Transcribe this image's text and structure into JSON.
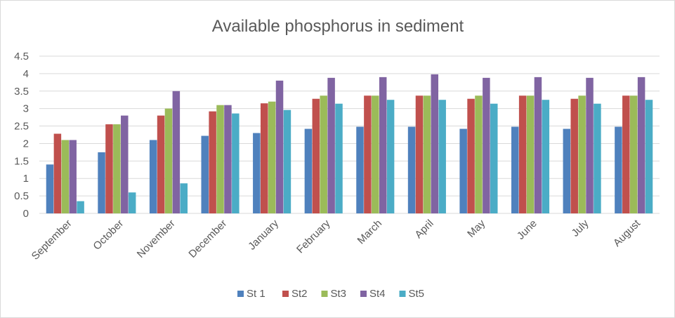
{
  "chart_data": {
    "type": "bar",
    "title": "Available phosphorus in sediment",
    "xlabel": "",
    "ylabel": "",
    "ylim": [
      0,
      4.5
    ],
    "yticks": [
      "0",
      "0.5",
      "1",
      "1.5",
      "2",
      "2.5",
      "3",
      "3.5",
      "4",
      "4.5"
    ],
    "categories": [
      "September",
      "October",
      "November",
      "December",
      "January",
      "February",
      "March",
      "April",
      "May",
      "June",
      "July",
      "August"
    ],
    "grid": true,
    "legend_position": "bottom",
    "series": [
      {
        "name": "St 1",
        "color": "#4f81bd",
        "values": [
          1.4,
          1.75,
          2.1,
          2.22,
          2.3,
          2.42,
          2.48,
          2.48,
          2.42,
          2.48,
          2.42,
          2.48
        ]
      },
      {
        "name": "St2",
        "color": "#c0504d",
        "values": [
          2.28,
          2.55,
          2.8,
          2.92,
          3.15,
          3.28,
          3.37,
          3.37,
          3.28,
          3.37,
          3.28,
          3.37
        ]
      },
      {
        "name": "St3",
        "color": "#9bbb59",
        "values": [
          2.1,
          2.55,
          3.0,
          3.1,
          3.2,
          3.37,
          3.37,
          3.37,
          3.37,
          3.37,
          3.37,
          3.37
        ]
      },
      {
        "name": "St4",
        "color": "#8064a2",
        "values": [
          2.1,
          2.8,
          3.5,
          3.1,
          3.8,
          3.88,
          3.9,
          3.98,
          3.88,
          3.9,
          3.88,
          3.9
        ]
      },
      {
        "name": "St5",
        "color": "#4bacc6",
        "values": [
          0.35,
          0.6,
          0.86,
          2.86,
          2.96,
          3.14,
          3.25,
          3.25,
          3.14,
          3.25,
          3.14,
          3.25
        ]
      }
    ]
  }
}
